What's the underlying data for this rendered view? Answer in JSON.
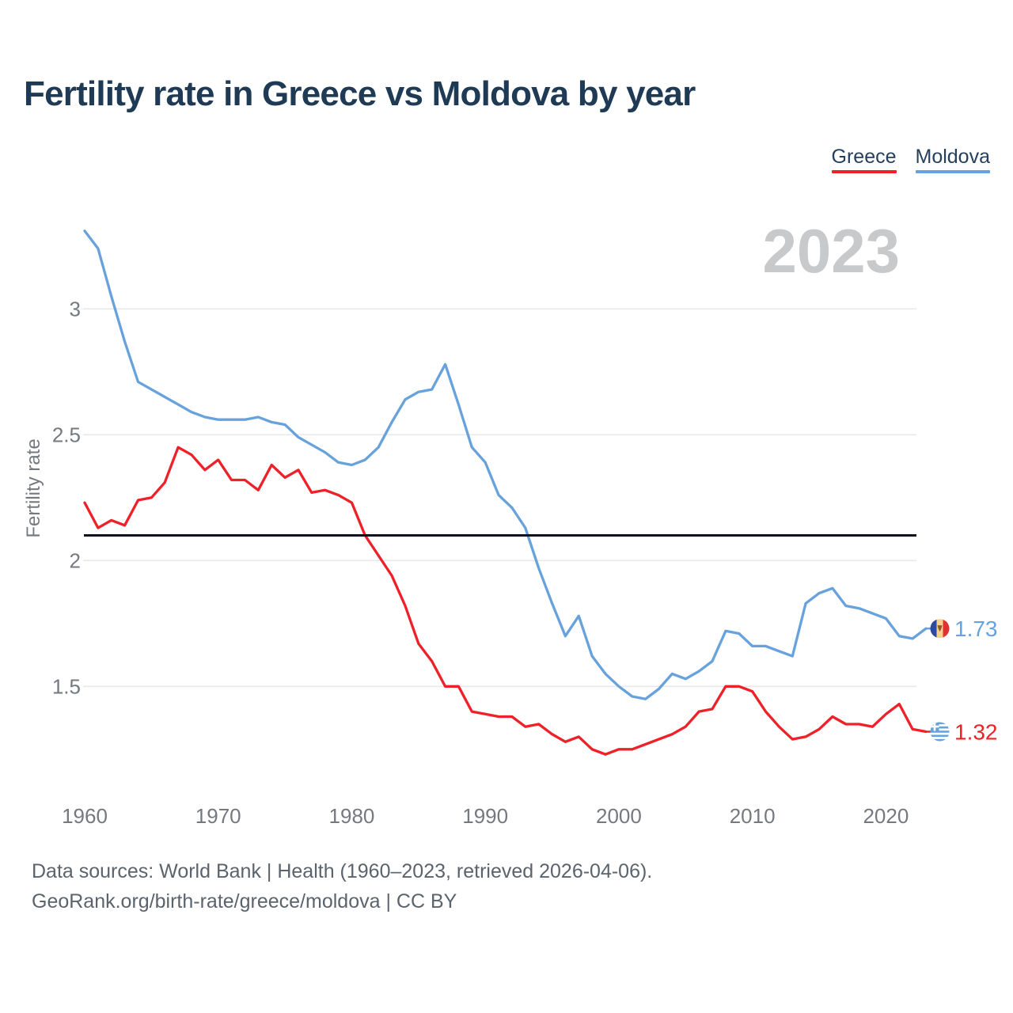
{
  "header": {
    "title": "Fertility rate in Greece vs Moldova by year"
  },
  "legend": {
    "items": [
      {
        "label": "Greece",
        "color": "#ee2129"
      },
      {
        "label": "Moldova",
        "color": "#68a2dc"
      }
    ]
  },
  "chart_data": {
    "type": "line",
    "title": "Fertility rate in Greece vs Moldova by year",
    "xlabel": "",
    "ylabel": "Fertility rate",
    "watermark": "2023",
    "watermark_color": "#c7c9cb",
    "grid": true,
    "legend_position": "top-right",
    "x_ticks": [
      1960,
      1970,
      1980,
      1990,
      2000,
      2010,
      2020
    ],
    "y_ticks": [
      1.5,
      2,
      2.5,
      3
    ],
    "ylim": [
      1.08,
      3.42
    ],
    "xlim": [
      1960,
      2023
    ],
    "reference_line": {
      "value": 2.1,
      "color": "#0c1220"
    },
    "x": [
      1960,
      1961,
      1962,
      1963,
      1964,
      1965,
      1966,
      1967,
      1968,
      1969,
      1970,
      1971,
      1972,
      1973,
      1974,
      1975,
      1976,
      1977,
      1978,
      1979,
      1980,
      1981,
      1982,
      1983,
      1984,
      1985,
      1986,
      1987,
      1988,
      1989,
      1990,
      1991,
      1992,
      1993,
      1994,
      1995,
      1996,
      1997,
      1998,
      1999,
      2000,
      2001,
      2002,
      2003,
      2004,
      2005,
      2006,
      2007,
      2008,
      2009,
      2010,
      2011,
      2012,
      2013,
      2014,
      2015,
      2016,
      2017,
      2018,
      2019,
      2020,
      2021,
      2022,
      2023
    ],
    "series": [
      {
        "name": "Greece",
        "color": "#ee2129",
        "flag_icon": "greece-flag",
        "end_label": "1.32",
        "values": [
          2.23,
          2.13,
          2.16,
          2.14,
          2.24,
          2.25,
          2.31,
          2.45,
          2.42,
          2.36,
          2.4,
          2.32,
          2.32,
          2.28,
          2.38,
          2.33,
          2.36,
          2.27,
          2.28,
          2.26,
          2.23,
          2.1,
          2.02,
          1.94,
          1.82,
          1.67,
          1.6,
          1.5,
          1.5,
          1.4,
          1.39,
          1.38,
          1.38,
          1.34,
          1.35,
          1.31,
          1.28,
          1.3,
          1.25,
          1.23,
          1.25,
          1.25,
          1.27,
          1.29,
          1.31,
          1.34,
          1.4,
          1.41,
          1.5,
          1.5,
          1.48,
          1.4,
          1.34,
          1.29,
          1.3,
          1.33,
          1.38,
          1.35,
          1.35,
          1.34,
          1.39,
          1.43,
          1.33,
          1.32
        ]
      },
      {
        "name": "Moldova",
        "color": "#68a2dc",
        "flag_icon": "moldova-flag",
        "end_label": "1.73",
        "values": [
          3.31,
          3.24,
          3.05,
          2.87,
          2.71,
          2.68,
          2.65,
          2.62,
          2.59,
          2.57,
          2.56,
          2.56,
          2.56,
          2.57,
          2.55,
          2.54,
          2.49,
          2.46,
          2.43,
          2.39,
          2.38,
          2.4,
          2.45,
          2.55,
          2.64,
          2.67,
          2.68,
          2.78,
          2.62,
          2.45,
          2.39,
          2.26,
          2.21,
          2.13,
          1.97,
          1.83,
          1.7,
          1.78,
          1.62,
          1.55,
          1.5,
          1.46,
          1.45,
          1.49,
          1.55,
          1.53,
          1.56,
          1.6,
          1.72,
          1.71,
          1.66,
          1.66,
          1.64,
          1.62,
          1.83,
          1.87,
          1.89,
          1.82,
          1.81,
          1.79,
          1.77,
          1.7,
          1.69,
          1.73
        ]
      }
    ]
  },
  "footer": {
    "line1": "Data sources: World Bank | Health (1960–2023, retrieved 2026-04-06).",
    "line2": "GeoRank.org/birth-rate/greece/moldova | CC BY"
  }
}
